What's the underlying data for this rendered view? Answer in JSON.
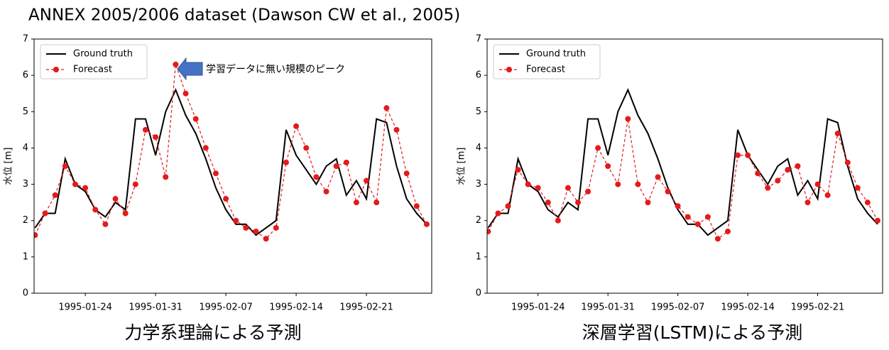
{
  "title": "ANNEX 2005/2006 dataset (Dawson CW et al., 2005)",
  "chart_data": [
    {
      "type": "line",
      "caption": "力学系理論による予測",
      "ylabel": "水位 [m]",
      "legend": "upper left",
      "annotation": "学習データに無い規模のピーク",
      "x": [
        "1995-01-19",
        "1995-01-20",
        "1995-01-21",
        "1995-01-22",
        "1995-01-23",
        "1995-01-24",
        "1995-01-25",
        "1995-01-26",
        "1995-01-27",
        "1995-01-28",
        "1995-01-29",
        "1995-01-30",
        "1995-01-31",
        "1995-02-01",
        "1995-02-02",
        "1995-02-03",
        "1995-02-04",
        "1995-02-05",
        "1995-02-06",
        "1995-02-07",
        "1995-02-08",
        "1995-02-09",
        "1995-02-10",
        "1995-02-11",
        "1995-02-12",
        "1995-02-13",
        "1995-02-14",
        "1995-02-15",
        "1995-02-16",
        "1995-02-17",
        "1995-02-18",
        "1995-02-19",
        "1995-02-20",
        "1995-02-21",
        "1995-02-22",
        "1995-02-23",
        "1995-02-24",
        "1995-02-25",
        "1995-02-26",
        "1995-02-27"
      ],
      "series": [
        {
          "name": "Ground truth",
          "color": "#000000",
          "linestyle": "solid",
          "marker": "none",
          "values": [
            1.8,
            2.2,
            2.2,
            3.7,
            3.0,
            2.8,
            2.3,
            2.1,
            2.5,
            2.3,
            4.8,
            4.8,
            3.8,
            5.0,
            5.6,
            4.9,
            4.4,
            3.7,
            2.9,
            2.3,
            1.9,
            1.9,
            1.6,
            1.8,
            2.0,
            4.5,
            3.8,
            3.4,
            3.0,
            3.5,
            3.7,
            2.7,
            3.1,
            2.6,
            4.8,
            4.7,
            3.5,
            2.6,
            2.2,
            1.9
          ]
        },
        {
          "name": "Forecast",
          "color": "#e41a1c",
          "linestyle": "dashed",
          "marker": "circle",
          "values": [
            1.6,
            2.2,
            2.7,
            3.5,
            3.0,
            2.9,
            2.3,
            1.9,
            2.6,
            2.2,
            3.0,
            4.5,
            4.3,
            3.2,
            6.3,
            5.5,
            4.8,
            4.0,
            3.3,
            2.6,
            2.0,
            1.8,
            1.7,
            1.5,
            1.8,
            3.6,
            4.6,
            4.0,
            3.2,
            2.8,
            3.5,
            3.6,
            2.5,
            3.1,
            2.5,
            5.1,
            4.5,
            3.3,
            2.4,
            1.9
          ]
        }
      ],
      "xlim": [
        "1995-01-19",
        "1995-02-27"
      ],
      "xticks": [
        "1995-01-24",
        "1995-01-31",
        "1995-02-07",
        "1995-02-14",
        "1995-02-21"
      ],
      "ylim": [
        0,
        7
      ],
      "yticks": [
        0,
        1,
        2,
        3,
        4,
        5,
        6,
        7
      ]
    },
    {
      "type": "line",
      "caption": "深層学習(LSTM)による予測",
      "ylabel": "水位 [m]",
      "legend": "upper left",
      "x": [
        "1995-01-19",
        "1995-01-20",
        "1995-01-21",
        "1995-01-22",
        "1995-01-23",
        "1995-01-24",
        "1995-01-25",
        "1995-01-26",
        "1995-01-27",
        "1995-01-28",
        "1995-01-29",
        "1995-01-30",
        "1995-01-31",
        "1995-02-01",
        "1995-02-02",
        "1995-02-03",
        "1995-02-04",
        "1995-02-05",
        "1995-02-06",
        "1995-02-07",
        "1995-02-08",
        "1995-02-09",
        "1995-02-10",
        "1995-02-11",
        "1995-02-12",
        "1995-02-13",
        "1995-02-14",
        "1995-02-15",
        "1995-02-16",
        "1995-02-17",
        "1995-02-18",
        "1995-02-19",
        "1995-02-20",
        "1995-02-21",
        "1995-02-22",
        "1995-02-23",
        "1995-02-24",
        "1995-02-25",
        "1995-02-26",
        "1995-02-27"
      ],
      "series": [
        {
          "name": "Ground truth",
          "color": "#000000",
          "linestyle": "solid",
          "marker": "none",
          "values": [
            1.8,
            2.2,
            2.2,
            3.7,
            3.0,
            2.8,
            2.3,
            2.1,
            2.5,
            2.3,
            4.8,
            4.8,
            3.8,
            5.0,
            5.6,
            4.9,
            4.4,
            3.7,
            2.9,
            2.3,
            1.9,
            1.9,
            1.6,
            1.8,
            2.0,
            4.5,
            3.8,
            3.4,
            3.0,
            3.5,
            3.7,
            2.7,
            3.1,
            2.6,
            4.8,
            4.7,
            3.5,
            2.6,
            2.2,
            1.9
          ]
        },
        {
          "name": "Forecast",
          "color": "#e41a1c",
          "linestyle": "dashed",
          "marker": "circle",
          "values": [
            1.7,
            2.2,
            2.4,
            3.4,
            3.0,
            2.9,
            2.5,
            2.0,
            2.9,
            2.5,
            2.8,
            4.0,
            3.5,
            3.0,
            4.8,
            3.0,
            2.5,
            3.2,
            2.8,
            2.4,
            2.1,
            1.9,
            2.1,
            1.5,
            1.7,
            3.8,
            3.8,
            3.3,
            2.9,
            3.1,
            3.4,
            3.5,
            2.5,
            3.0,
            2.7,
            4.4,
            3.6,
            2.9,
            2.5,
            2.0
          ]
        }
      ],
      "xlim": [
        "1995-01-19",
        "1995-02-27"
      ],
      "xticks": [
        "1995-01-24",
        "1995-01-31",
        "1995-02-07",
        "1995-02-14",
        "1995-02-21"
      ],
      "ylim": [
        0,
        7
      ],
      "yticks": [
        0,
        1,
        2,
        3,
        4,
        5,
        6,
        7
      ]
    }
  ]
}
